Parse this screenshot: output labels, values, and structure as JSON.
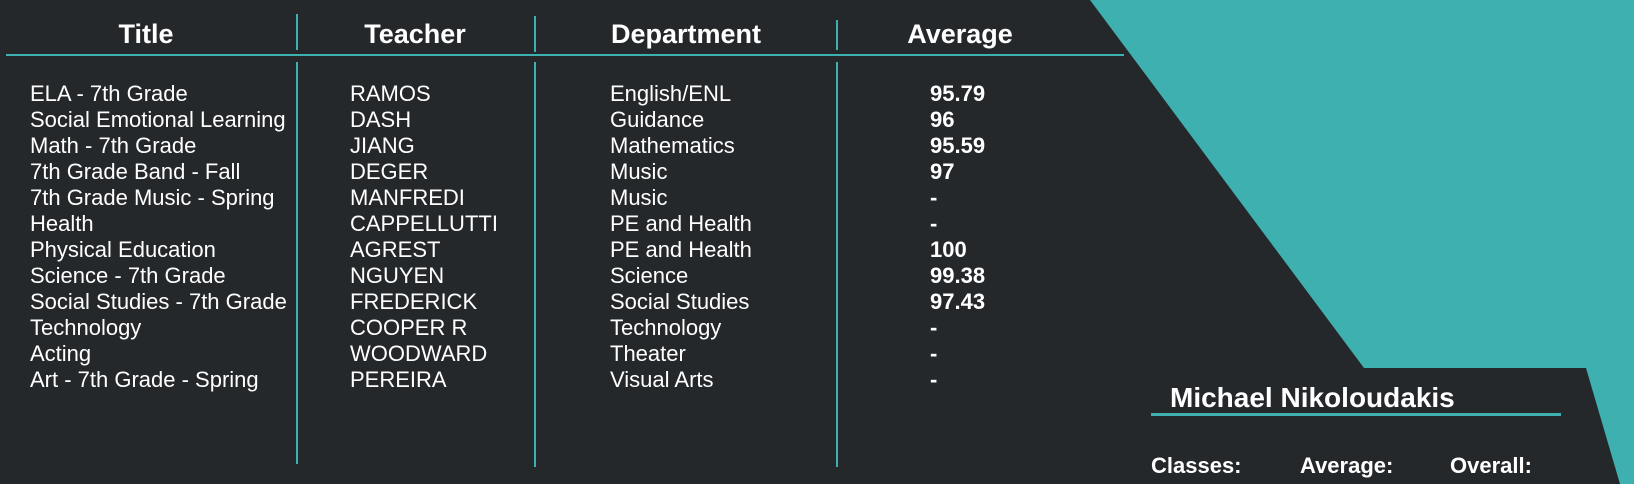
{
  "colors": {
    "accent": "#3fb0b0",
    "background": "#24282b",
    "text": "#ffffff"
  },
  "table": {
    "headers": {
      "title": "Title",
      "teacher": "Teacher",
      "department": "Department",
      "average": "Average"
    },
    "rows": [
      {
        "title": "ELA - 7th Grade",
        "teacher": "RAMOS",
        "department": "English/ENL",
        "average": "95.79"
      },
      {
        "title": "Social Emotional Learning",
        "teacher": "DASH",
        "department": "Guidance",
        "average": "96"
      },
      {
        "title": "Math - 7th Grade",
        "teacher": "JIANG",
        "department": "Mathematics",
        "average": "95.59"
      },
      {
        "title": "7th Grade Band - Fall",
        "teacher": "DEGER",
        "department": "Music",
        "average": "97"
      },
      {
        "title": "7th Grade Music - Spring",
        "teacher": "MANFREDI",
        "department": "Music",
        "average": "-"
      },
      {
        "title": "Health",
        "teacher": "CAPPELLUTTI",
        "department": "PE and Health",
        "average": "-"
      },
      {
        "title": "Physical Education",
        "teacher": "AGREST",
        "department": "PE and Health",
        "average": "100"
      },
      {
        "title": "Science - 7th Grade",
        "teacher": "NGUYEN",
        "department": "Science",
        "average": "99.38"
      },
      {
        "title": "Social Studies - 7th Grade",
        "teacher": "FREDERICK",
        "department": "Social Studies",
        "average": "97.43"
      },
      {
        "title": "Technology",
        "teacher": "COOPER R",
        "department": "Technology",
        "average": "-"
      },
      {
        "title": "Acting",
        "teacher": "WOODWARD",
        "department": "Theater",
        "average": "-"
      },
      {
        "title": "Art - 7th Grade - Spring",
        "teacher": "PEREIRA",
        "department": "Visual Arts",
        "average": "-"
      }
    ]
  },
  "student": {
    "name": "Michael Nikoloudakis",
    "classes_label": "Classes:",
    "average_label": "Average:",
    "overall_label": "Overall:"
  }
}
